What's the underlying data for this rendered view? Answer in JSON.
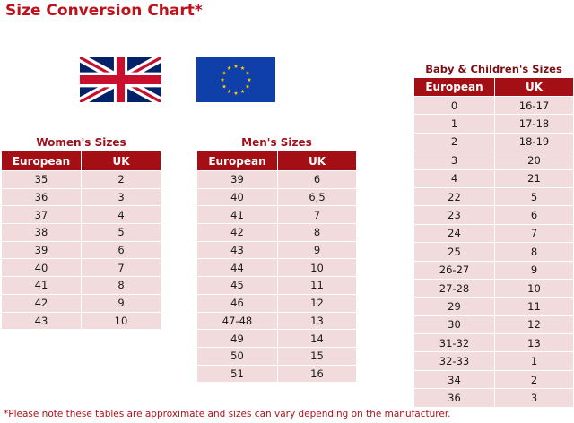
{
  "title": "Size Conversion Chart*",
  "flags": {
    "left": "uk-flag",
    "right": "eu-flag"
  },
  "women": {
    "title": "Women's Sizes",
    "headers": [
      "European",
      "UK"
    ],
    "rows": [
      [
        "35",
        "2"
      ],
      [
        "36",
        "3"
      ],
      [
        "37",
        "4"
      ],
      [
        "38",
        "5"
      ],
      [
        "39",
        "6"
      ],
      [
        "40",
        "7"
      ],
      [
        "41",
        "8"
      ],
      [
        "42",
        "9"
      ],
      [
        "43",
        "10"
      ]
    ]
  },
  "men": {
    "title": "Men's Sizes",
    "headers": [
      "European",
      "UK"
    ],
    "rows": [
      [
        "39",
        "6"
      ],
      [
        "40",
        "6,5"
      ],
      [
        "41",
        "7"
      ],
      [
        "42",
        "8"
      ],
      [
        "43",
        "9"
      ],
      [
        "44",
        "10"
      ],
      [
        "45",
        "11"
      ],
      [
        "46",
        "12"
      ],
      [
        "47-48",
        "13"
      ],
      [
        "49",
        "14"
      ],
      [
        "50",
        "15"
      ],
      [
        "51",
        "16"
      ]
    ]
  },
  "kids": {
    "title": "Baby & Children's Sizes",
    "headers": [
      "European",
      "UK"
    ],
    "rows": [
      [
        "0",
        "16-17"
      ],
      [
        "1",
        "17-18"
      ],
      [
        "2",
        "18-19"
      ],
      [
        "3",
        "20"
      ],
      [
        "4",
        "21"
      ],
      [
        "22",
        "5"
      ],
      [
        "23",
        "6"
      ],
      [
        "24",
        "7"
      ],
      [
        "25",
        "8"
      ],
      [
        "26-27",
        "9"
      ],
      [
        "27-28",
        "10"
      ],
      [
        "29",
        "11"
      ],
      [
        "30",
        "12"
      ],
      [
        "31-32",
        "13"
      ],
      [
        "32-33",
        "1"
      ],
      [
        "34",
        "2"
      ],
      [
        "36",
        "3"
      ]
    ]
  },
  "footnote": "*Please note these tables are approximate and sizes can vary depending on the manufacturer.",
  "colors": {
    "accent": "#c0111a",
    "header_bg": "#a30f14",
    "cell_bg": "#f1dbdc"
  }
}
